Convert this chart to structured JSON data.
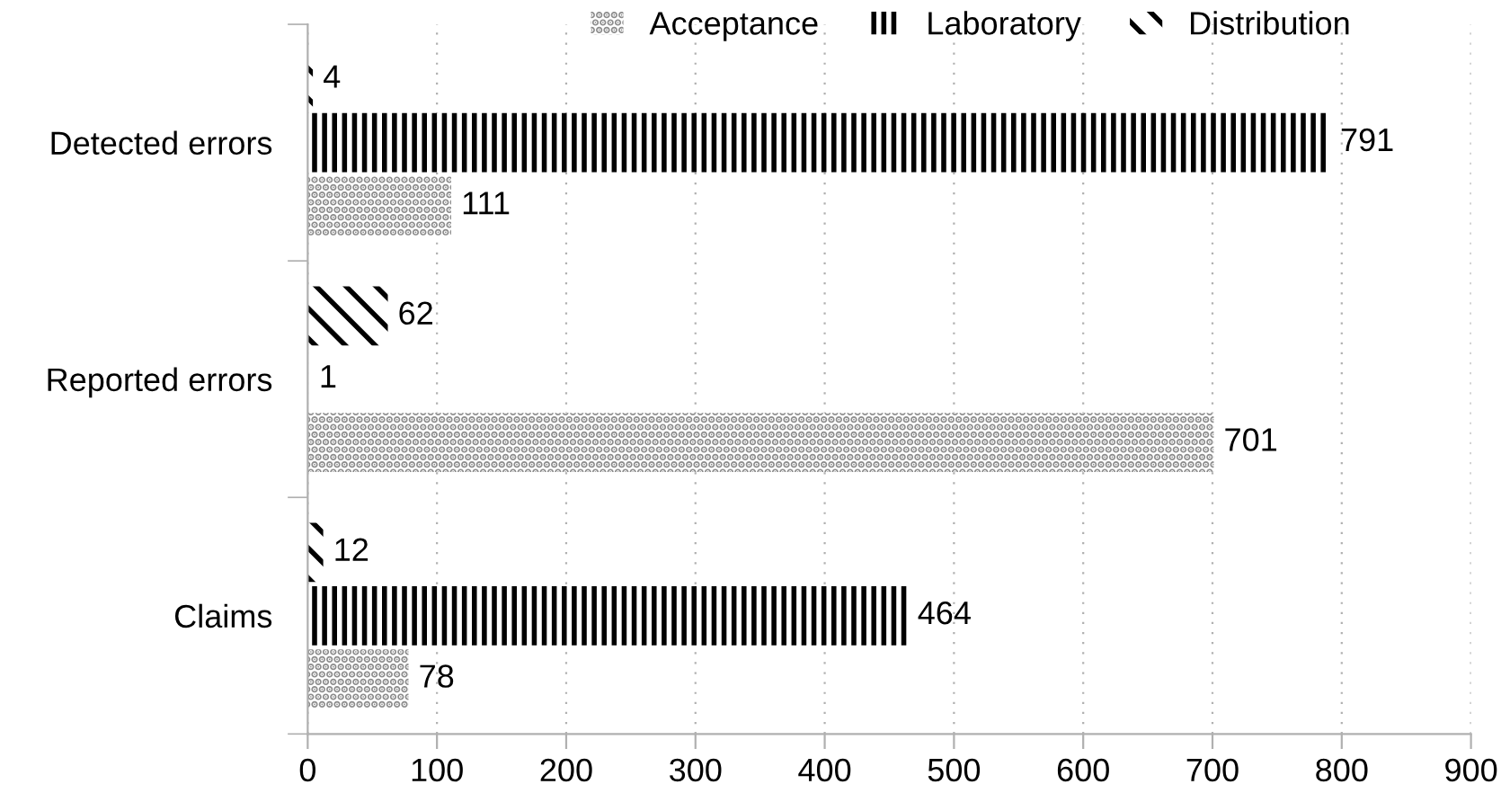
{
  "chart_data": {
    "type": "bar",
    "orientation": "horizontal",
    "categories": [
      "Detected errors",
      "Reported errors",
      "Claims"
    ],
    "series": [
      {
        "name": "Acceptance",
        "color": "#8c8c8c",
        "values": [
          111,
          701,
          78
        ]
      },
      {
        "name": "Laboratory",
        "color": "#000000",
        "values": [
          791,
          1,
          464
        ]
      },
      {
        "name": "Distribution",
        "color": "#000000",
        "values": [
          4,
          62,
          12
        ]
      }
    ],
    "xlim": [
      0,
      900
    ],
    "xticks": [
      0,
      100,
      200,
      300,
      400,
      500,
      600,
      700,
      800,
      900
    ],
    "data_labels": true,
    "grid": "x",
    "legend": "top"
  }
}
